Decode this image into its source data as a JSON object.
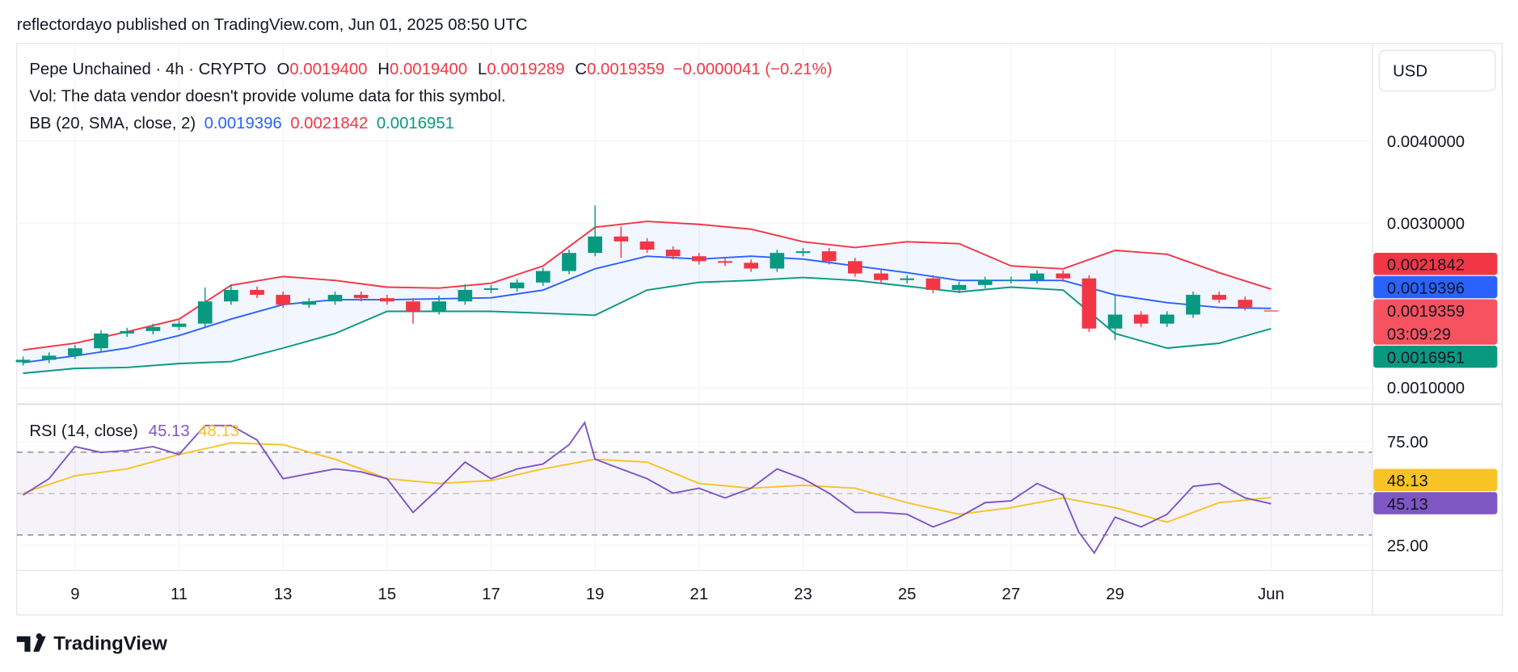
{
  "header": "reflectordayo published on TradingView.com, Jun 01, 2025 08:50 UTC",
  "footer": {
    "brand": "TradingView"
  },
  "chart_data": [
    {
      "type": "candlestick",
      "legend": {
        "symbol": "Pepe Unchained · 4h · CRYPTO",
        "open_label": "O",
        "open": "0.0019400",
        "high_label": "H",
        "high": "0.0019400",
        "low_label": "L",
        "low": "0.0019289",
        "close_label": "C",
        "close": "0.0019359",
        "change": "−0.0000041 (−0.21%)",
        "volume_note": "Vol: The data vendor doesn't provide volume data for this symbol.",
        "bb_title": "BB (20, SMA, close, 2)",
        "bb_values": [
          "0.0019396",
          "0.0021842",
          "0.0016951"
        ]
      },
      "currency": "USD",
      "up_color": "#089981",
      "down_color": "#f23645",
      "x": [
        8,
        8.5,
        9,
        9.5,
        10,
        10.5,
        11,
        11.5,
        12,
        12.5,
        13,
        13.5,
        14,
        14.5,
        15,
        15.5,
        16,
        16.5,
        17,
        17.5,
        18,
        18.5,
        19,
        19.5,
        20,
        20.5,
        21,
        21.5,
        22,
        22.5,
        23,
        23.5,
        24,
        24.5,
        25,
        25.5,
        26,
        26.5,
        27,
        27.5,
        28,
        28.5,
        29,
        29.5,
        30,
        30.5,
        31,
        31.5,
        32
      ],
      "open": [
        0.00131,
        0.00134,
        0.00139,
        0.00148,
        0.00166,
        0.00169,
        0.00174,
        0.00178,
        0.00205,
        0.00219,
        0.00213,
        0.00201,
        0.00205,
        0.00213,
        0.00209,
        0.00205,
        0.00193,
        0.00205,
        0.00219,
        0.00221,
        0.00228,
        0.00242,
        0.00264,
        0.00284,
        0.00278,
        0.00268,
        0.0026,
        0.00254,
        0.00252,
        0.00245,
        0.00264,
        0.00266,
        0.00254,
        0.00239,
        0.00231,
        0.00233,
        0.00219,
        0.00225,
        0.00231,
        0.00231,
        0.00239,
        0.00233,
        0.00172,
        0.00189,
        0.00178,
        0.00189,
        0.00213,
        0.00207,
        0.00194
      ],
      "high": [
        0.00138,
        0.00143,
        0.00152,
        0.0017,
        0.00173,
        0.00178,
        0.00182,
        0.00222,
        0.00226,
        0.00223,
        0.00217,
        0.00209,
        0.00217,
        0.00217,
        0.00213,
        0.00209,
        0.00212,
        0.00226,
        0.00225,
        0.00232,
        0.00246,
        0.00268,
        0.00322,
        0.00296,
        0.00282,
        0.00272,
        0.00264,
        0.00258,
        0.00256,
        0.00268,
        0.0027,
        0.0027,
        0.00258,
        0.00243,
        0.00237,
        0.00237,
        0.00229,
        0.00235,
        0.00235,
        0.00243,
        0.00243,
        0.00237,
        0.00213,
        0.00193,
        0.00193,
        0.00217,
        0.00217,
        0.00211,
        0.00194
      ],
      "low": [
        0.00127,
        0.0013,
        0.00135,
        0.00144,
        0.00162,
        0.00165,
        0.0017,
        0.00174,
        0.00201,
        0.00209,
        0.00197,
        0.00197,
        0.00201,
        0.00205,
        0.00201,
        0.00178,
        0.00189,
        0.00201,
        0.00215,
        0.00217,
        0.00224,
        0.00238,
        0.0026,
        0.00258,
        0.00264,
        0.00256,
        0.0025,
        0.00248,
        0.00241,
        0.00241,
        0.0026,
        0.0025,
        0.00235,
        0.00227,
        0.00227,
        0.00215,
        0.00215,
        0.00221,
        0.00227,
        0.00227,
        0.00229,
        0.00168,
        0.00158,
        0.00174,
        0.00174,
        0.00185,
        0.00203,
        0.00194,
        0.0019289
      ],
      "close": [
        0.00134,
        0.00139,
        0.00148,
        0.00166,
        0.00169,
        0.00174,
        0.00178,
        0.00205,
        0.00219,
        0.00213,
        0.00201,
        0.00205,
        0.00213,
        0.00209,
        0.00205,
        0.00193,
        0.00205,
        0.00219,
        0.00221,
        0.00228,
        0.00242,
        0.00264,
        0.00284,
        0.00278,
        0.00268,
        0.0026,
        0.00254,
        0.00252,
        0.00245,
        0.00264,
        0.00266,
        0.00254,
        0.00239,
        0.00231,
        0.00233,
        0.00219,
        0.00225,
        0.00231,
        0.00231,
        0.00239,
        0.00233,
        0.00172,
        0.00189,
        0.00178,
        0.00189,
        0.00213,
        0.00207,
        0.00198,
        0.0019359
      ],
      "bands": {
        "x": [
          8,
          9,
          10,
          11,
          12,
          13,
          14,
          15,
          16,
          17,
          18,
          19,
          20,
          21,
          22,
          23,
          24,
          25,
          26,
          27,
          28,
          29,
          30,
          31,
          32
        ],
        "fill": "#2962ff",
        "upper": {
          "color": "#f23645",
          "values": [
            0.001459,
            0.001541,
            0.001682,
            0.001835,
            0.002247,
            0.002353,
            0.002306,
            0.002224,
            0.002212,
            0.002271,
            0.002482,
            0.002953,
            0.003024,
            0.002988,
            0.002929,
            0.002776,
            0.002706,
            0.002776,
            0.002753,
            0.002482,
            0.002447,
            0.002671,
            0.002624,
            0.0024,
            0.0022
          ]
        },
        "middle": {
          "color": "#2962ff",
          "values": [
            0.001306,
            0.001388,
            0.001482,
            0.001635,
            0.001835,
            0.002012,
            0.002071,
            0.002071,
            0.002082,
            0.002094,
            0.002188,
            0.002447,
            0.0026,
            0.002565,
            0.0026,
            0.002565,
            0.002482,
            0.0024,
            0.002306,
            0.002306,
            0.002306,
            0.002129,
            0.002035,
            0.001976,
            0.001965
          ]
        },
        "lower": {
          "color": "#089981",
          "values": [
            0.001176,
            0.001235,
            0.001247,
            0.001294,
            0.001318,
            0.001482,
            0.001659,
            0.001929,
            0.001929,
            0.001929,
            0.001906,
            0.001882,
            0.002188,
            0.002282,
            0.002306,
            0.002341,
            0.002306,
            0.002235,
            0.002165,
            0.002224,
            0.002188,
            0.001659,
            0.001482,
            0.001541,
            0.001718
          ]
        }
      },
      "xlim": [
        7.88,
        33.95
      ],
      "ylim": [
        0.0008,
        0.005188
      ],
      "yticks": [
        {
          "value": 0.001,
          "label": "0.0010000"
        },
        {
          "value": 0.003,
          "label": "0.0030000"
        },
        {
          "value": 0.004,
          "label": "0.0040000"
        }
      ],
      "xticks": [
        9,
        11,
        13,
        15,
        17,
        19,
        21,
        23,
        25,
        27,
        29,
        {
          "value": 32,
          "label": "Jun"
        }
      ],
      "grid": true,
      "badges": [
        {
          "value": 0.0021842,
          "label": "0.0021842",
          "color": "#f23645"
        },
        {
          "value": 0.0019396,
          "label": "0.0019396",
          "color": "#2962ff"
        },
        {
          "value": 0.0019359,
          "label": "0.0019359",
          "sub": "03:09:29",
          "color": "#f7525f"
        },
        {
          "value": 0.0016951,
          "label": "0.0016951",
          "color": "#089981"
        }
      ]
    },
    {
      "type": "line",
      "legend": {
        "title": "RSI (14, close)",
        "values": [
          "45.13",
          "48.13"
        ]
      },
      "series": [
        {
          "color": "#7e57c2",
          "x": [
            8,
            8.5,
            9,
            9.5,
            10,
            10.5,
            11,
            11.5,
            12,
            12.5,
            13,
            13.5,
            14,
            14.5,
            15,
            15.5,
            16,
            16.5,
            17,
            17.5,
            18,
            18.5,
            18.8,
            19,
            19.5,
            20,
            20.5,
            21,
            21.5,
            22,
            22.5,
            23,
            23.5,
            24,
            24.5,
            25,
            25.5,
            26,
            26.5,
            27,
            27.5,
            28,
            28.3,
            28.6,
            29,
            29.5,
            30,
            30.5,
            31,
            31.5,
            32
          ],
          "values": [
            49.3,
            57.2,
            72.7,
            69.9,
            70.8,
            72.7,
            68.9,
            82.9,
            82.9,
            75.9,
            57.2,
            59.6,
            61.9,
            60.5,
            57.2,
            40.9,
            52.6,
            65.2,
            57.2,
            61.9,
            64.3,
            73.6,
            84.3,
            66.6,
            61.9,
            57.2,
            50.2,
            52.6,
            47.9,
            52.6,
            61.9,
            57.2,
            50.2,
            40.9,
            40.9,
            40.0,
            33.9,
            38.6,
            45.6,
            46.5,
            54.9,
            49.3,
            31.5,
            21.3,
            38.6,
            33.9,
            40.0,
            53.5,
            54.9,
            47.9,
            45.1
          ]
        },
        {
          "color": "#f7c325",
          "x": [
            8,
            9,
            10,
            11,
            12,
            13,
            14,
            15,
            16,
            17,
            18,
            19,
            20,
            21,
            22,
            23,
            24,
            25,
            26,
            27,
            28,
            29,
            30,
            31,
            32
          ],
          "values": [
            50.2,
            58.6,
            61.9,
            68.9,
            74.5,
            73.6,
            66.6,
            57.2,
            54.9,
            56.3,
            61.9,
            66.6,
            65.2,
            54.9,
            52.6,
            54.0,
            52.6,
            45.6,
            40.0,
            43.2,
            47.9,
            43.2,
            36.2,
            45.6,
            48.1
          ]
        }
      ],
      "levels": [
        70,
        50,
        30
      ],
      "band_color": "#7e57c2",
      "ylim": [
        12.85,
        93.2
      ],
      "yticks": [
        {
          "value": 75,
          "label": "75.00"
        },
        {
          "value": 25,
          "label": "25.00"
        }
      ],
      "badges": [
        {
          "value": 48.13,
          "label": "48.13",
          "color": "#f7c325",
          "text_color": "#131722"
        },
        {
          "value": 45.13,
          "label": "45.13",
          "color": "#7e57c2"
        }
      ]
    }
  ]
}
